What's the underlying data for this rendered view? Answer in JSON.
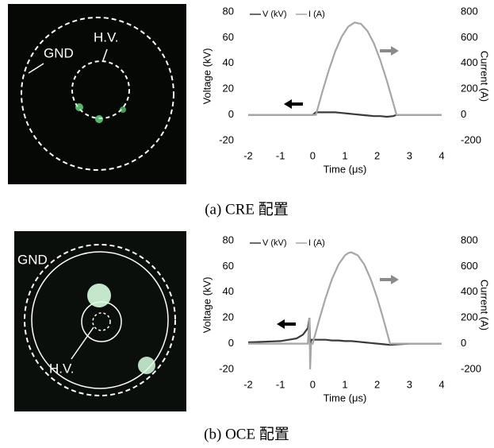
{
  "chart_data": [
    {
      "type": "line",
      "caption": "(a) CRE 配置",
      "image_labels": [
        "GND",
        "H.V."
      ],
      "x_label": "Time (μs)",
      "y_label": "Voltage (kV)",
      "y2_label": "Current (A)",
      "xlim": [
        -2,
        4
      ],
      "xticks": [
        -2,
        -1,
        0,
        1,
        2,
        3,
        4
      ],
      "ylim": [
        -20,
        80
      ],
      "yticks": [
        -20,
        0,
        20,
        40,
        60,
        80
      ],
      "y2lim": [
        -200,
        800
      ],
      "y2ticks": [
        -200,
        0,
        200,
        400,
        600,
        800
      ],
      "x": [
        -2,
        -1.5,
        -1,
        -0.5,
        0,
        0.1,
        0.3,
        0.5,
        0.7,
        0.9,
        1.1,
        1.3,
        1.5,
        1.7,
        1.9,
        2.1,
        2.3,
        2.5,
        2.6,
        3,
        3.5,
        4
      ],
      "series": [
        {
          "name": "V (kV)",
          "color": "#3a3a3a",
          "values": [
            0,
            0,
            0,
            0,
            0,
            2,
            2,
            2,
            2,
            1.5,
            1,
            0.5,
            0,
            -0.5,
            -1,
            -1,
            -1.5,
            -1,
            0,
            0,
            0,
            0
          ]
        },
        {
          "name": "I (A)",
          "color": "#a6a6a6",
          "axis": "y2",
          "values": [
            0,
            0,
            0,
            0,
            0,
            0,
            179,
            347,
            493,
            608,
            685,
            718,
            707,
            651,
            555,
            423,
            265,
            90,
            0,
            0,
            0,
            0
          ]
        }
      ]
    },
    {
      "type": "line",
      "caption": "(b) OCE 配置",
      "image_labels": [
        "GND",
        "H.V."
      ],
      "x_label": "Time (μs)",
      "y_label": "Voltage (kV)",
      "y2_label": "Current (A)",
      "xlim": [
        -2,
        4
      ],
      "xticks": [
        -2,
        -1,
        0,
        1,
        2,
        3,
        4
      ],
      "ylim": [
        -20,
        80
      ],
      "yticks": [
        -20,
        0,
        20,
        40,
        60,
        80
      ],
      "y2lim": [
        -200,
        800
      ],
      "y2ticks": [
        -200,
        0,
        200,
        400,
        600,
        800
      ],
      "x": [
        -2,
        -1.5,
        -1,
        -0.5,
        -0.3,
        -0.15,
        -0.1,
        -0.08,
        -0.05,
        0,
        0.2,
        0.4,
        0.6,
        0.8,
        1.0,
        1.1,
        1.2,
        1.4,
        1.6,
        1.8,
        2.0,
        2.2,
        2.4,
        3,
        3.5,
        4
      ],
      "series": [
        {
          "name": "V (kV)",
          "color": "#3a3a3a",
          "values": [
            1,
            1.5,
            2,
            4,
            7,
            12,
            20,
            -2,
            3,
            3,
            3,
            3,
            2.5,
            2.5,
            2,
            2,
            2,
            1.5,
            1,
            0.5,
            0,
            -0.5,
            -1,
            0,
            0,
            0
          ]
        },
        {
          "name": "I (A)",
          "color": "#a6a6a6",
          "axis": "y2",
          "values": [
            0,
            0,
            0,
            0,
            0,
            0,
            200,
            -200,
            0,
            0,
            184,
            355,
            502,
            615,
            686,
            704,
            710,
            686,
            615,
            502,
            355,
            184,
            0,
            0,
            0,
            0
          ]
        }
      ]
    }
  ]
}
